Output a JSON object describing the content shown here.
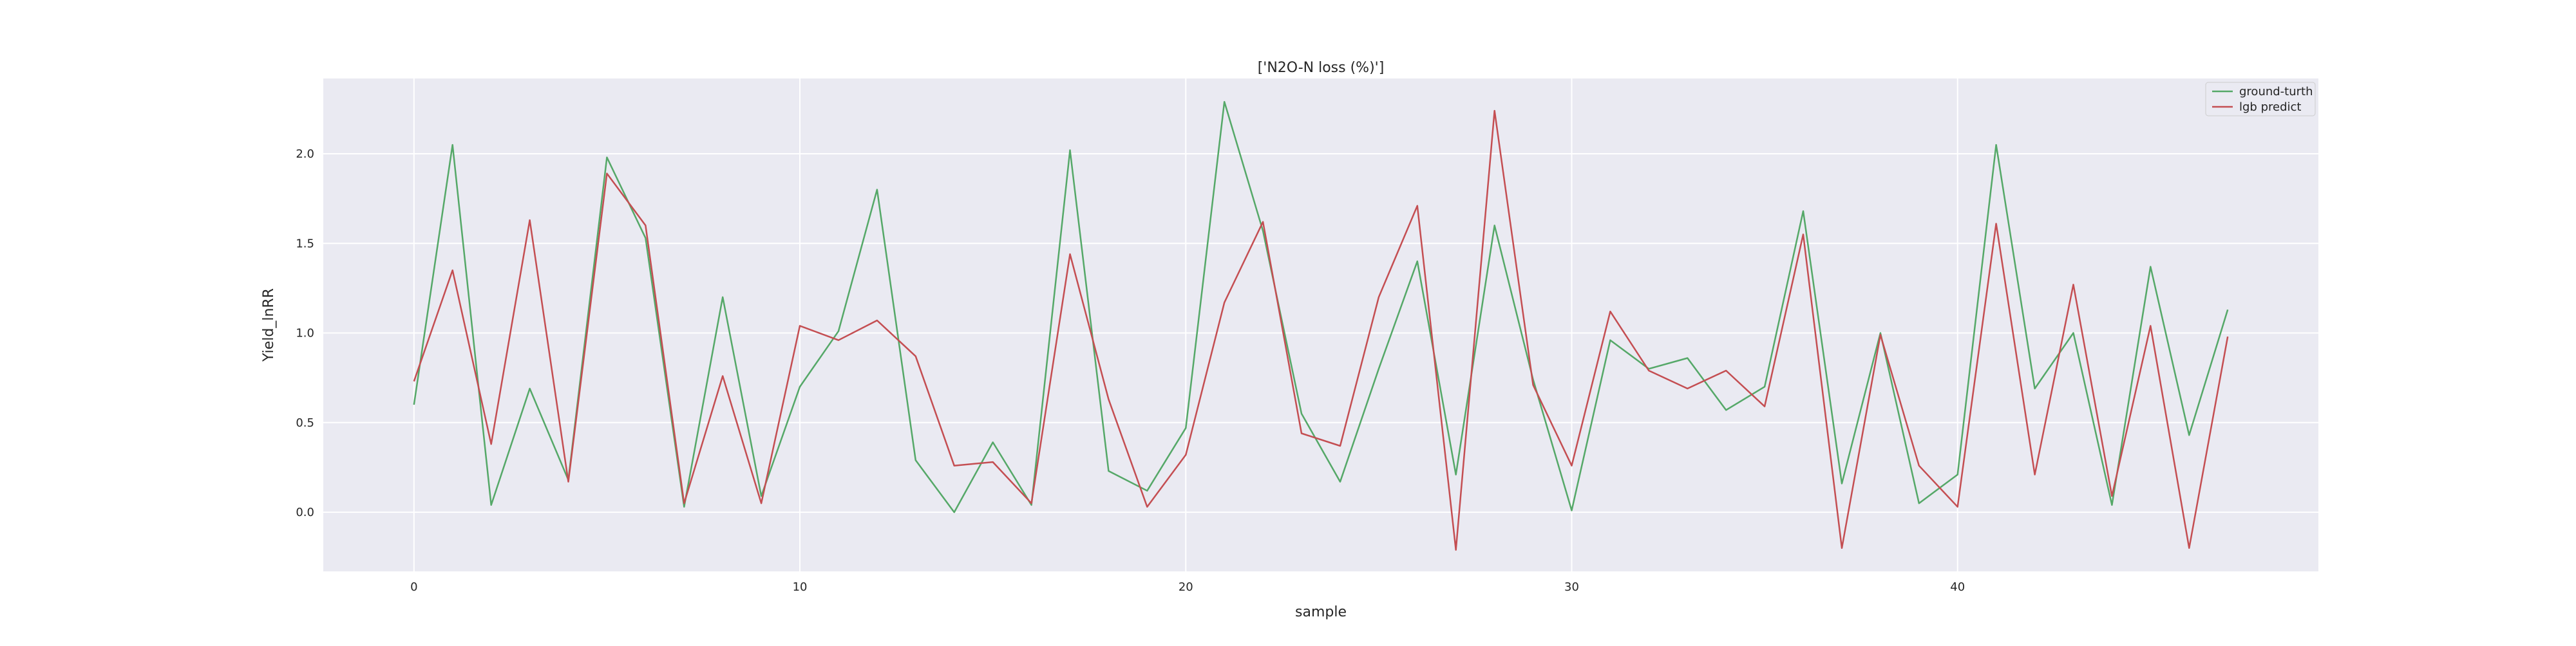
{
  "chart_data": {
    "type": "line",
    "title": "['N2O-N loss (%)']",
    "xlabel": "sample",
    "ylabel": "Yield_lnRR",
    "xlim": [
      -2.35,
      49.35
    ],
    "ylim": [
      -0.33,
      2.42
    ],
    "xticks": [
      0,
      10,
      20,
      30,
      40
    ],
    "yticks": [
      0.0,
      0.5,
      1.0,
      1.5,
      2.0
    ],
    "xtick_labels": [
      "0",
      "10",
      "20",
      "30",
      "40"
    ],
    "ytick_labels": [
      "0.0",
      "0.5",
      "1.0",
      "1.5",
      "2.0"
    ],
    "grid": true,
    "legend_position": "top-right",
    "background_color": "#eaeaf2",
    "grid_color": "#ffffff",
    "x": [
      0,
      1,
      2,
      3,
      4,
      5,
      6,
      7,
      8,
      9,
      10,
      11,
      12,
      13,
      14,
      15,
      16,
      17,
      18,
      19,
      20,
      21,
      22,
      23,
      24,
      25,
      26,
      27,
      28,
      29,
      30,
      31,
      32,
      33,
      34,
      35,
      36,
      37,
      38,
      39,
      40,
      41,
      42,
      43,
      44,
      45,
      46,
      47
    ],
    "series": [
      {
        "name": "ground-turth",
        "color": "#55a868",
        "values": [
          0.6,
          2.05,
          0.04,
          0.69,
          0.18,
          1.98,
          1.53,
          0.03,
          1.2,
          0.09,
          0.7,
          1.01,
          1.8,
          0.29,
          0.0,
          0.39,
          0.04,
          2.02,
          0.23,
          0.12,
          0.47,
          2.29,
          1.57,
          0.55,
          0.17,
          0.8,
          1.4,
          0.21,
          1.6,
          0.74,
          0.01,
          0.96,
          0.8,
          0.86,
          0.57,
          0.7,
          1.68,
          0.16,
          1.0,
          0.05,
          0.21,
          2.05,
          0.69,
          1.0,
          0.04,
          1.37,
          0.43,
          1.13
        ]
      },
      {
        "name": "lgb predict",
        "color": "#c44e52",
        "values": [
          0.73,
          1.35,
          0.38,
          1.63,
          0.17,
          1.89,
          1.6,
          0.05,
          0.76,
          0.05,
          1.04,
          0.96,
          1.07,
          0.87,
          0.26,
          0.28,
          0.05,
          1.44,
          0.63,
          0.03,
          0.32,
          1.17,
          1.62,
          0.44,
          0.37,
          1.2,
          1.71,
          -0.21,
          2.24,
          0.71,
          0.26,
          1.12,
          0.79,
          0.69,
          0.79,
          0.59,
          1.55,
          -0.2,
          0.99,
          0.26,
          0.03,
          1.61,
          0.21,
          1.27,
          0.09,
          1.04,
          -0.2,
          0.98
        ]
      }
    ]
  }
}
